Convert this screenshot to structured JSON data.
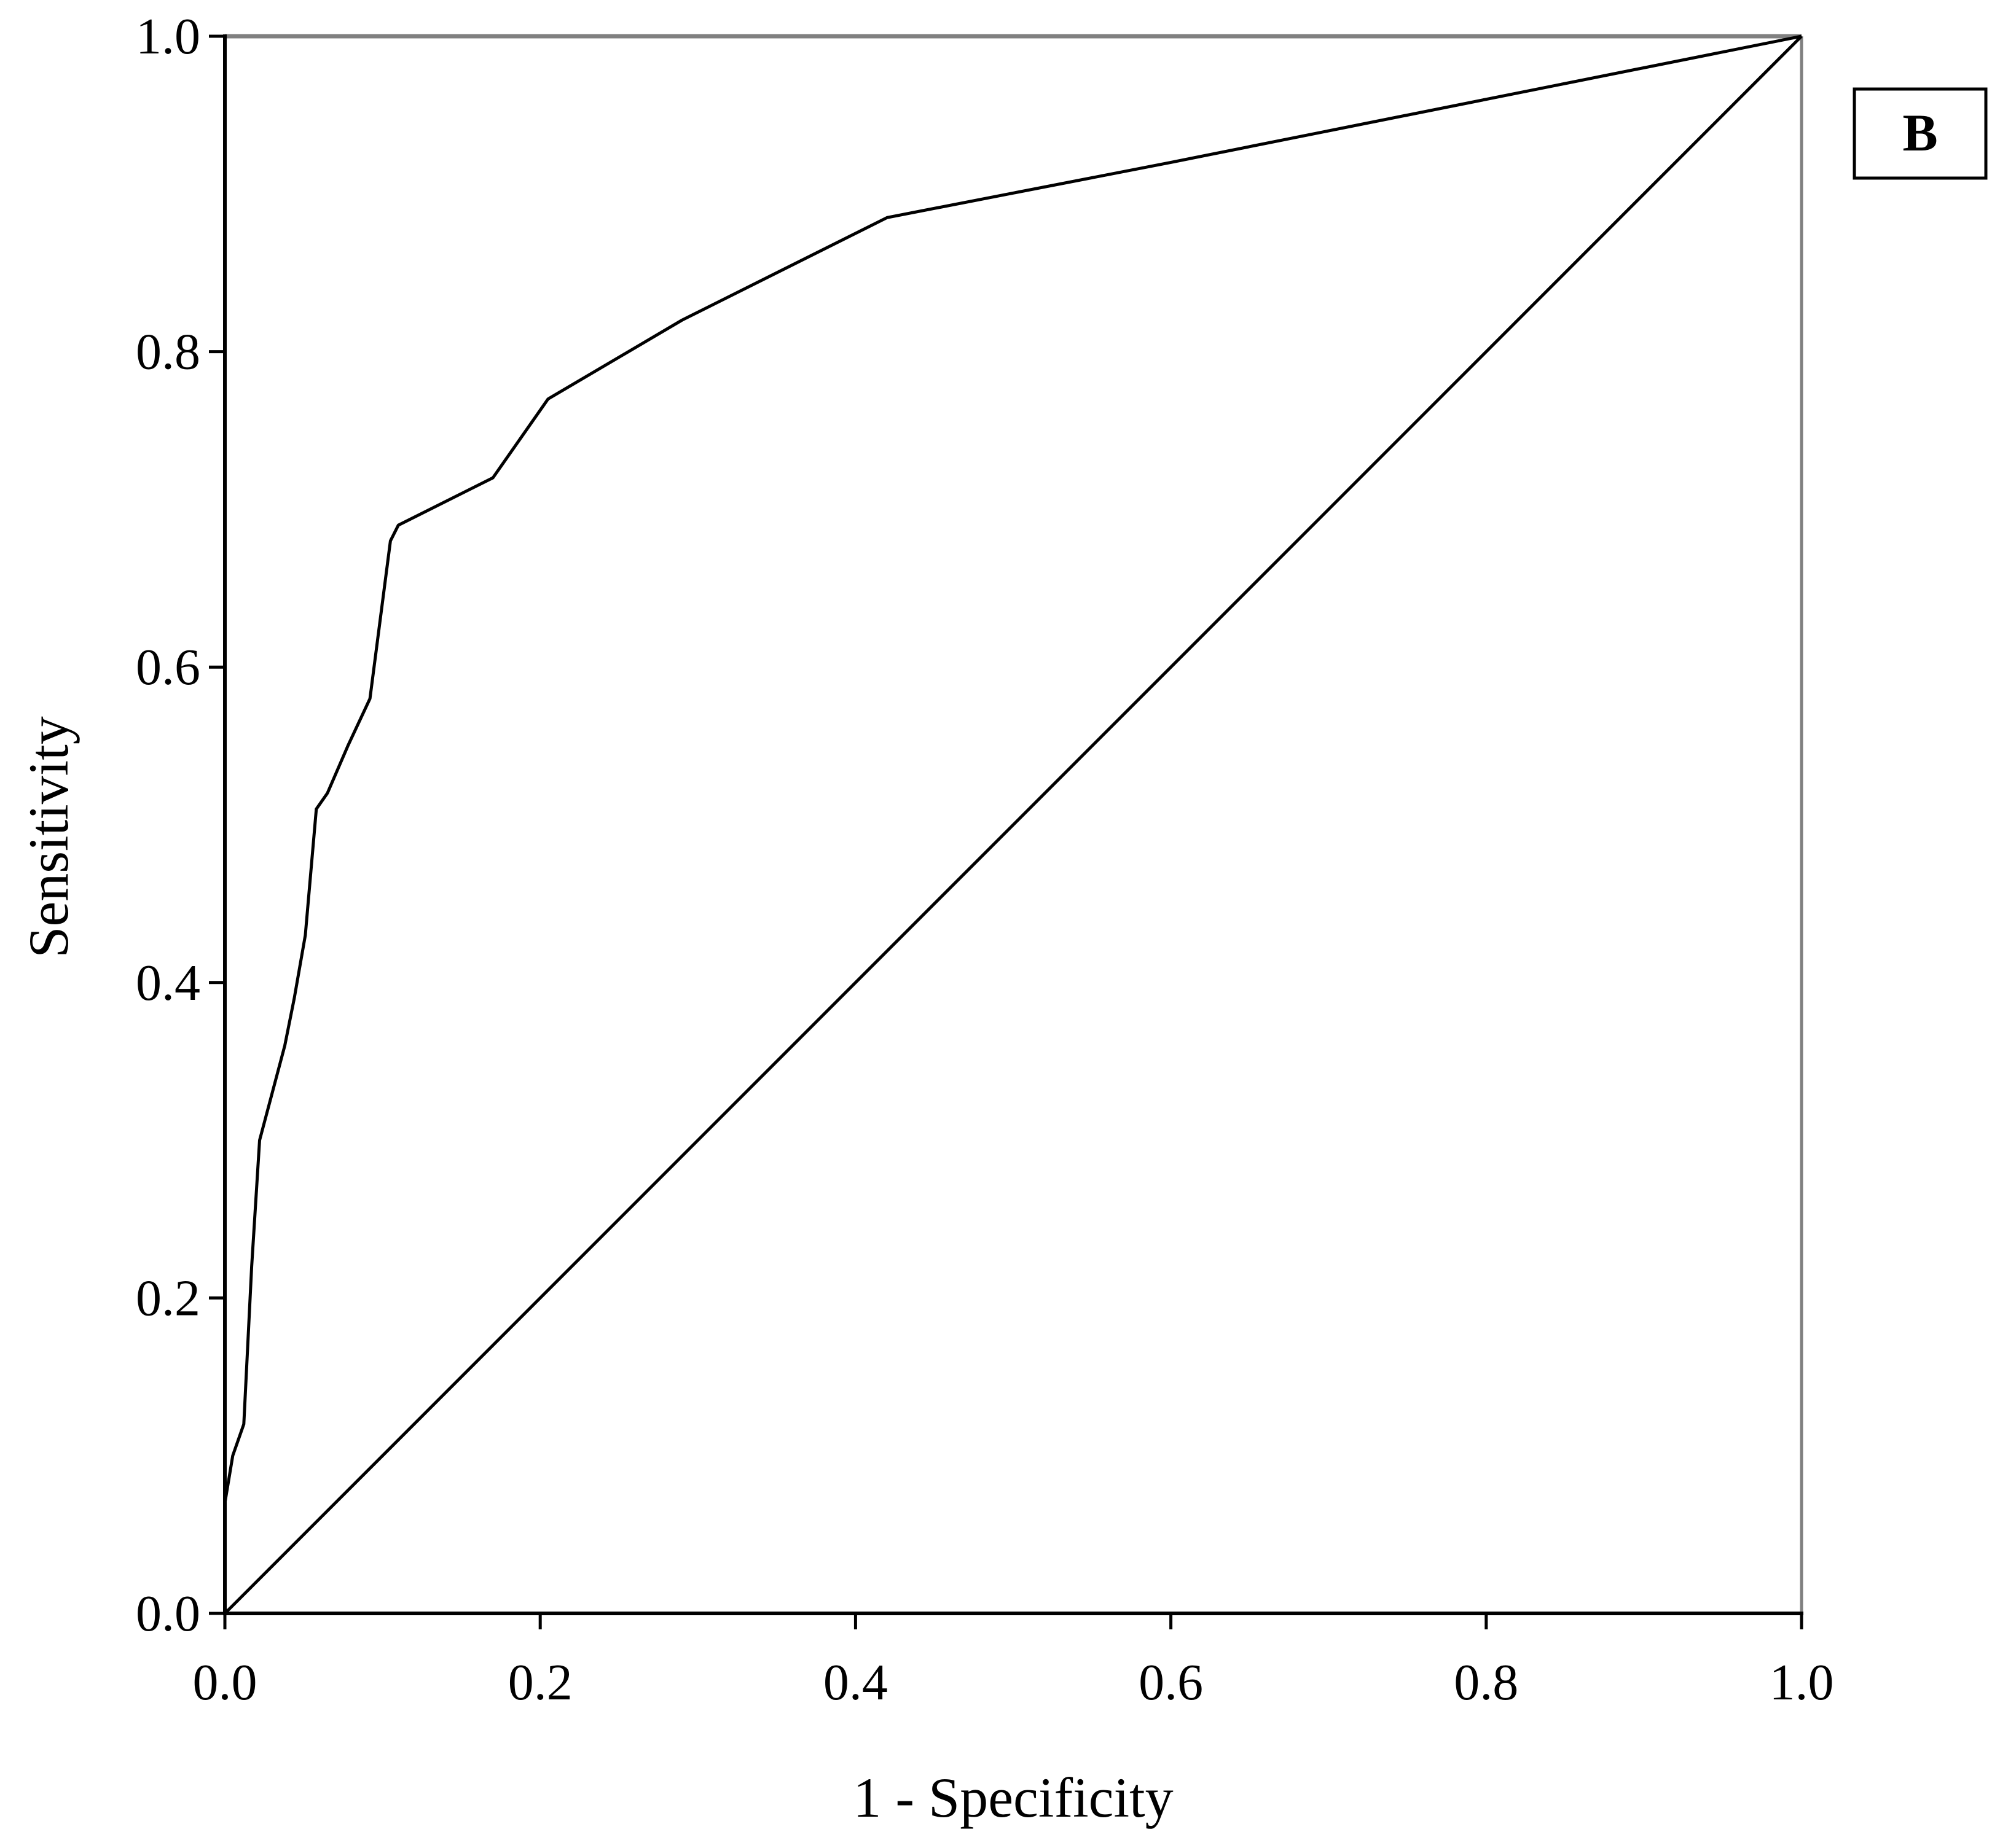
{
  "chart_data": {
    "type": "line",
    "title": "",
    "xlabel": "1 - Specificity",
    "ylabel": "Sensitivity",
    "xlim": [
      0,
      1
    ],
    "ylim": [
      0,
      1
    ],
    "x_ticks": [
      "0.0",
      "0.2",
      "0.4",
      "0.6",
      "0.8",
      "1.0"
    ],
    "y_ticks": [
      "0.0",
      "0.2",
      "0.4",
      "0.6",
      "0.8",
      "1.0"
    ],
    "panel_label": "B",
    "grid": false,
    "ylabel_color": "#c05a00",
    "series": [
      {
        "x": [
          0.0,
          0.0,
          0.005,
          0.012,
          0.017,
          0.022,
          0.03,
          0.038,
          0.044,
          0.051,
          0.058,
          0.065,
          0.078,
          0.092,
          0.105,
          0.11,
          0.17,
          0.205,
          0.29,
          0.42,
          0.6,
          0.8,
          1.0
        ],
        "y": [
          0.0,
          0.07,
          0.1,
          0.12,
          0.22,
          0.3,
          0.33,
          0.36,
          0.39,
          0.43,
          0.51,
          0.52,
          0.55,
          0.58,
          0.68,
          0.69,
          0.72,
          0.77,
          0.82,
          0.885,
          0.92,
          0.96,
          1.0
        ]
      },
      {
        "x": [
          0.0,
          1.0
        ],
        "y": [
          0.0,
          1.0
        ]
      }
    ]
  }
}
